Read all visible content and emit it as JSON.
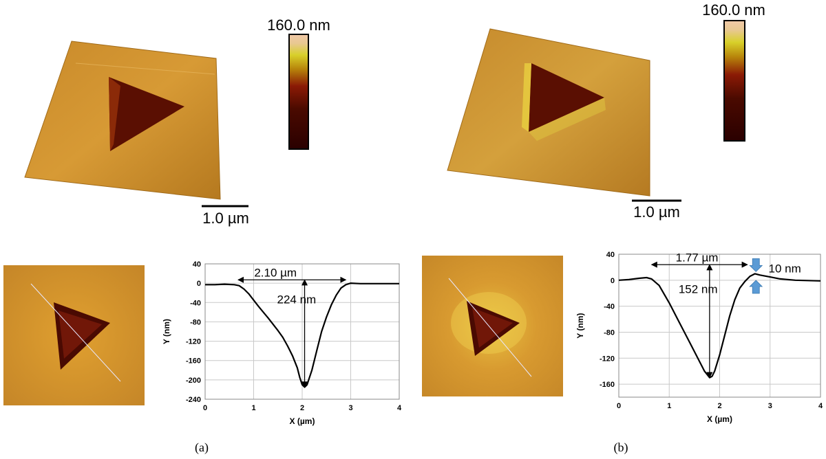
{
  "panels": [
    {
      "id": "a",
      "caption": "(a)",
      "colorbar_label": "160.0 nm",
      "scale_label": "1.0 µm",
      "chart_data": {
        "type": "line",
        "xlabel": "X (µm)",
        "ylabel": "Y (nm)",
        "xlim": [
          0,
          4
        ],
        "ylim": [
          -240,
          40
        ],
        "xticks": [
          0,
          1,
          2,
          3,
          4
        ],
        "yticks": [
          40,
          0,
          -40,
          -80,
          -120,
          -160,
          -200,
          -240
        ],
        "grid": true,
        "x": [
          0,
          0.2,
          0.4,
          0.6,
          0.7,
          0.8,
          0.9,
          1.0,
          1.1,
          1.2,
          1.3,
          1.4,
          1.5,
          1.6,
          1.7,
          1.8,
          1.9,
          1.95,
          2.0,
          2.05,
          2.1,
          2.2,
          2.3,
          2.4,
          2.5,
          2.6,
          2.7,
          2.8,
          2.9,
          3.0,
          3.2,
          3.5,
          4.0
        ],
        "y": [
          -3,
          -3,
          -2,
          -3,
          -5,
          -12,
          -22,
          -35,
          -48,
          -60,
          -72,
          -85,
          -98,
          -112,
          -130,
          -150,
          -175,
          -195,
          -210,
          -215,
          -210,
          -180,
          -140,
          -100,
          -70,
          -45,
          -25,
          -10,
          -3,
          0,
          -1,
          -1,
          -1
        ],
        "annotations": [
          {
            "text": "2.10 µm",
            "type": "width"
          },
          {
            "text": "224 nm",
            "type": "depth"
          }
        ]
      }
    },
    {
      "id": "b",
      "caption": "(b)",
      "colorbar_label": "160.0 nm",
      "scale_label": "1.0 µm",
      "chart_data": {
        "type": "line",
        "xlabel": "X (µm)",
        "ylabel": "Y (nm)",
        "xlim": [
          0,
          4
        ],
        "ylim": [
          -180,
          40
        ],
        "xticks": [
          0,
          1,
          2,
          3,
          4
        ],
        "yticks": [
          40,
          0,
          -40,
          -80,
          -120,
          -160
        ],
        "grid": true,
        "x": [
          0,
          0.2,
          0.4,
          0.55,
          0.65,
          0.8,
          1.0,
          1.2,
          1.4,
          1.6,
          1.7,
          1.8,
          1.85,
          1.9,
          2.0,
          2.1,
          2.2,
          2.3,
          2.4,
          2.5,
          2.6,
          2.7,
          2.8,
          3.0,
          3.2,
          3.5,
          4.0
        ],
        "y": [
          0,
          1,
          3,
          4,
          2,
          -8,
          -35,
          -65,
          -95,
          -125,
          -140,
          -150,
          -148,
          -140,
          -115,
          -85,
          -55,
          -30,
          -12,
          -2,
          6,
          10,
          8,
          5,
          2,
          0,
          -1
        ],
        "annotations": [
          {
            "text": "1.77 µm",
            "type": "width"
          },
          {
            "text": "152 nm",
            "type": "depth"
          },
          {
            "text": "10 nm",
            "type": "pileup"
          }
        ]
      }
    }
  ]
}
